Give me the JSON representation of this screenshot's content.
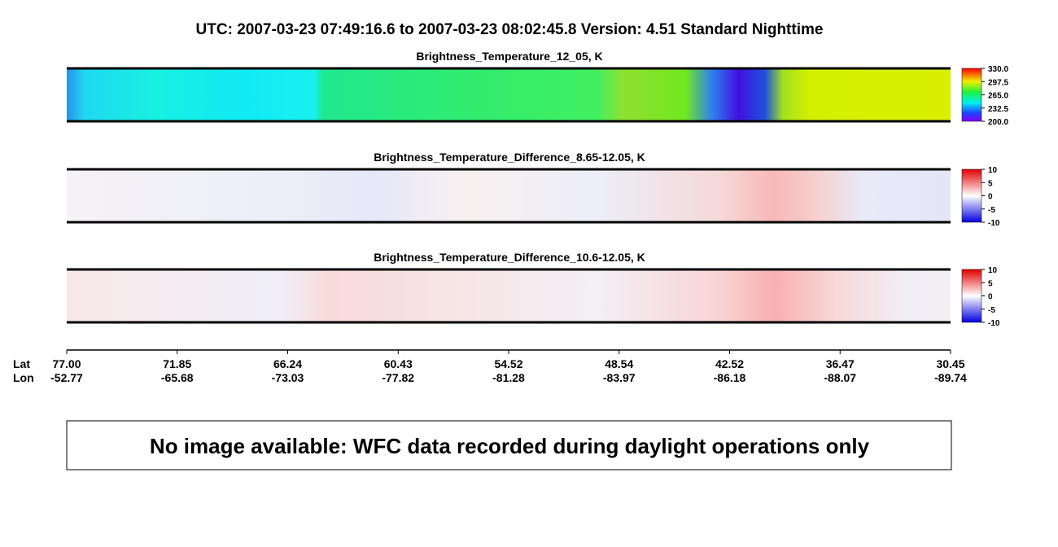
{
  "title": "UTC:  2007-03-23   07:49:16.6  to  2007-03-23   08:02:45.8    Version: 4.51  Standard Nighttime",
  "panels": [
    {
      "title": "Brightness_Temperature_12_05, K",
      "colorbar": {
        "range": [
          200,
          330
        ],
        "ticks": [
          {
            "value": 330,
            "label": "330.0"
          },
          {
            "value": 297.5,
            "label": "297.5"
          },
          {
            "value": 265,
            "label": "265.0"
          },
          {
            "value": 232.5,
            "label": "232.5"
          },
          {
            "value": 200,
            "label": "200.0"
          }
        ]
      }
    },
    {
      "title": "Brightness_Temperature_Difference_8.65-12.05, K",
      "colorbar": {
        "range": [
          -10,
          10
        ],
        "ticks": [
          10,
          5,
          0,
          -5,
          -10
        ]
      }
    },
    {
      "title": "Brightness_Temperature_Difference_10.6-12.05, K",
      "colorbar": {
        "range": [
          -10,
          10
        ],
        "ticks": [
          10,
          5,
          0,
          -5,
          -10
        ]
      }
    }
  ],
  "axis": {
    "lat_label": "Lat",
    "lon_label": "Lon",
    "lat": [
      {
        "value": 77,
        "label": "77.00"
      },
      71.85,
      66.24,
      60.43,
      54.52,
      48.54,
      42.52,
      36.47,
      30.45
    ],
    "lon": [
      -52.77,
      -65.68,
      -73.03,
      -77.82,
      -81.28,
      -83.97,
      -86.18,
      -88.07,
      -89.74
    ]
  },
  "message": "No image available: WFC data recorded during daylight operations only"
}
